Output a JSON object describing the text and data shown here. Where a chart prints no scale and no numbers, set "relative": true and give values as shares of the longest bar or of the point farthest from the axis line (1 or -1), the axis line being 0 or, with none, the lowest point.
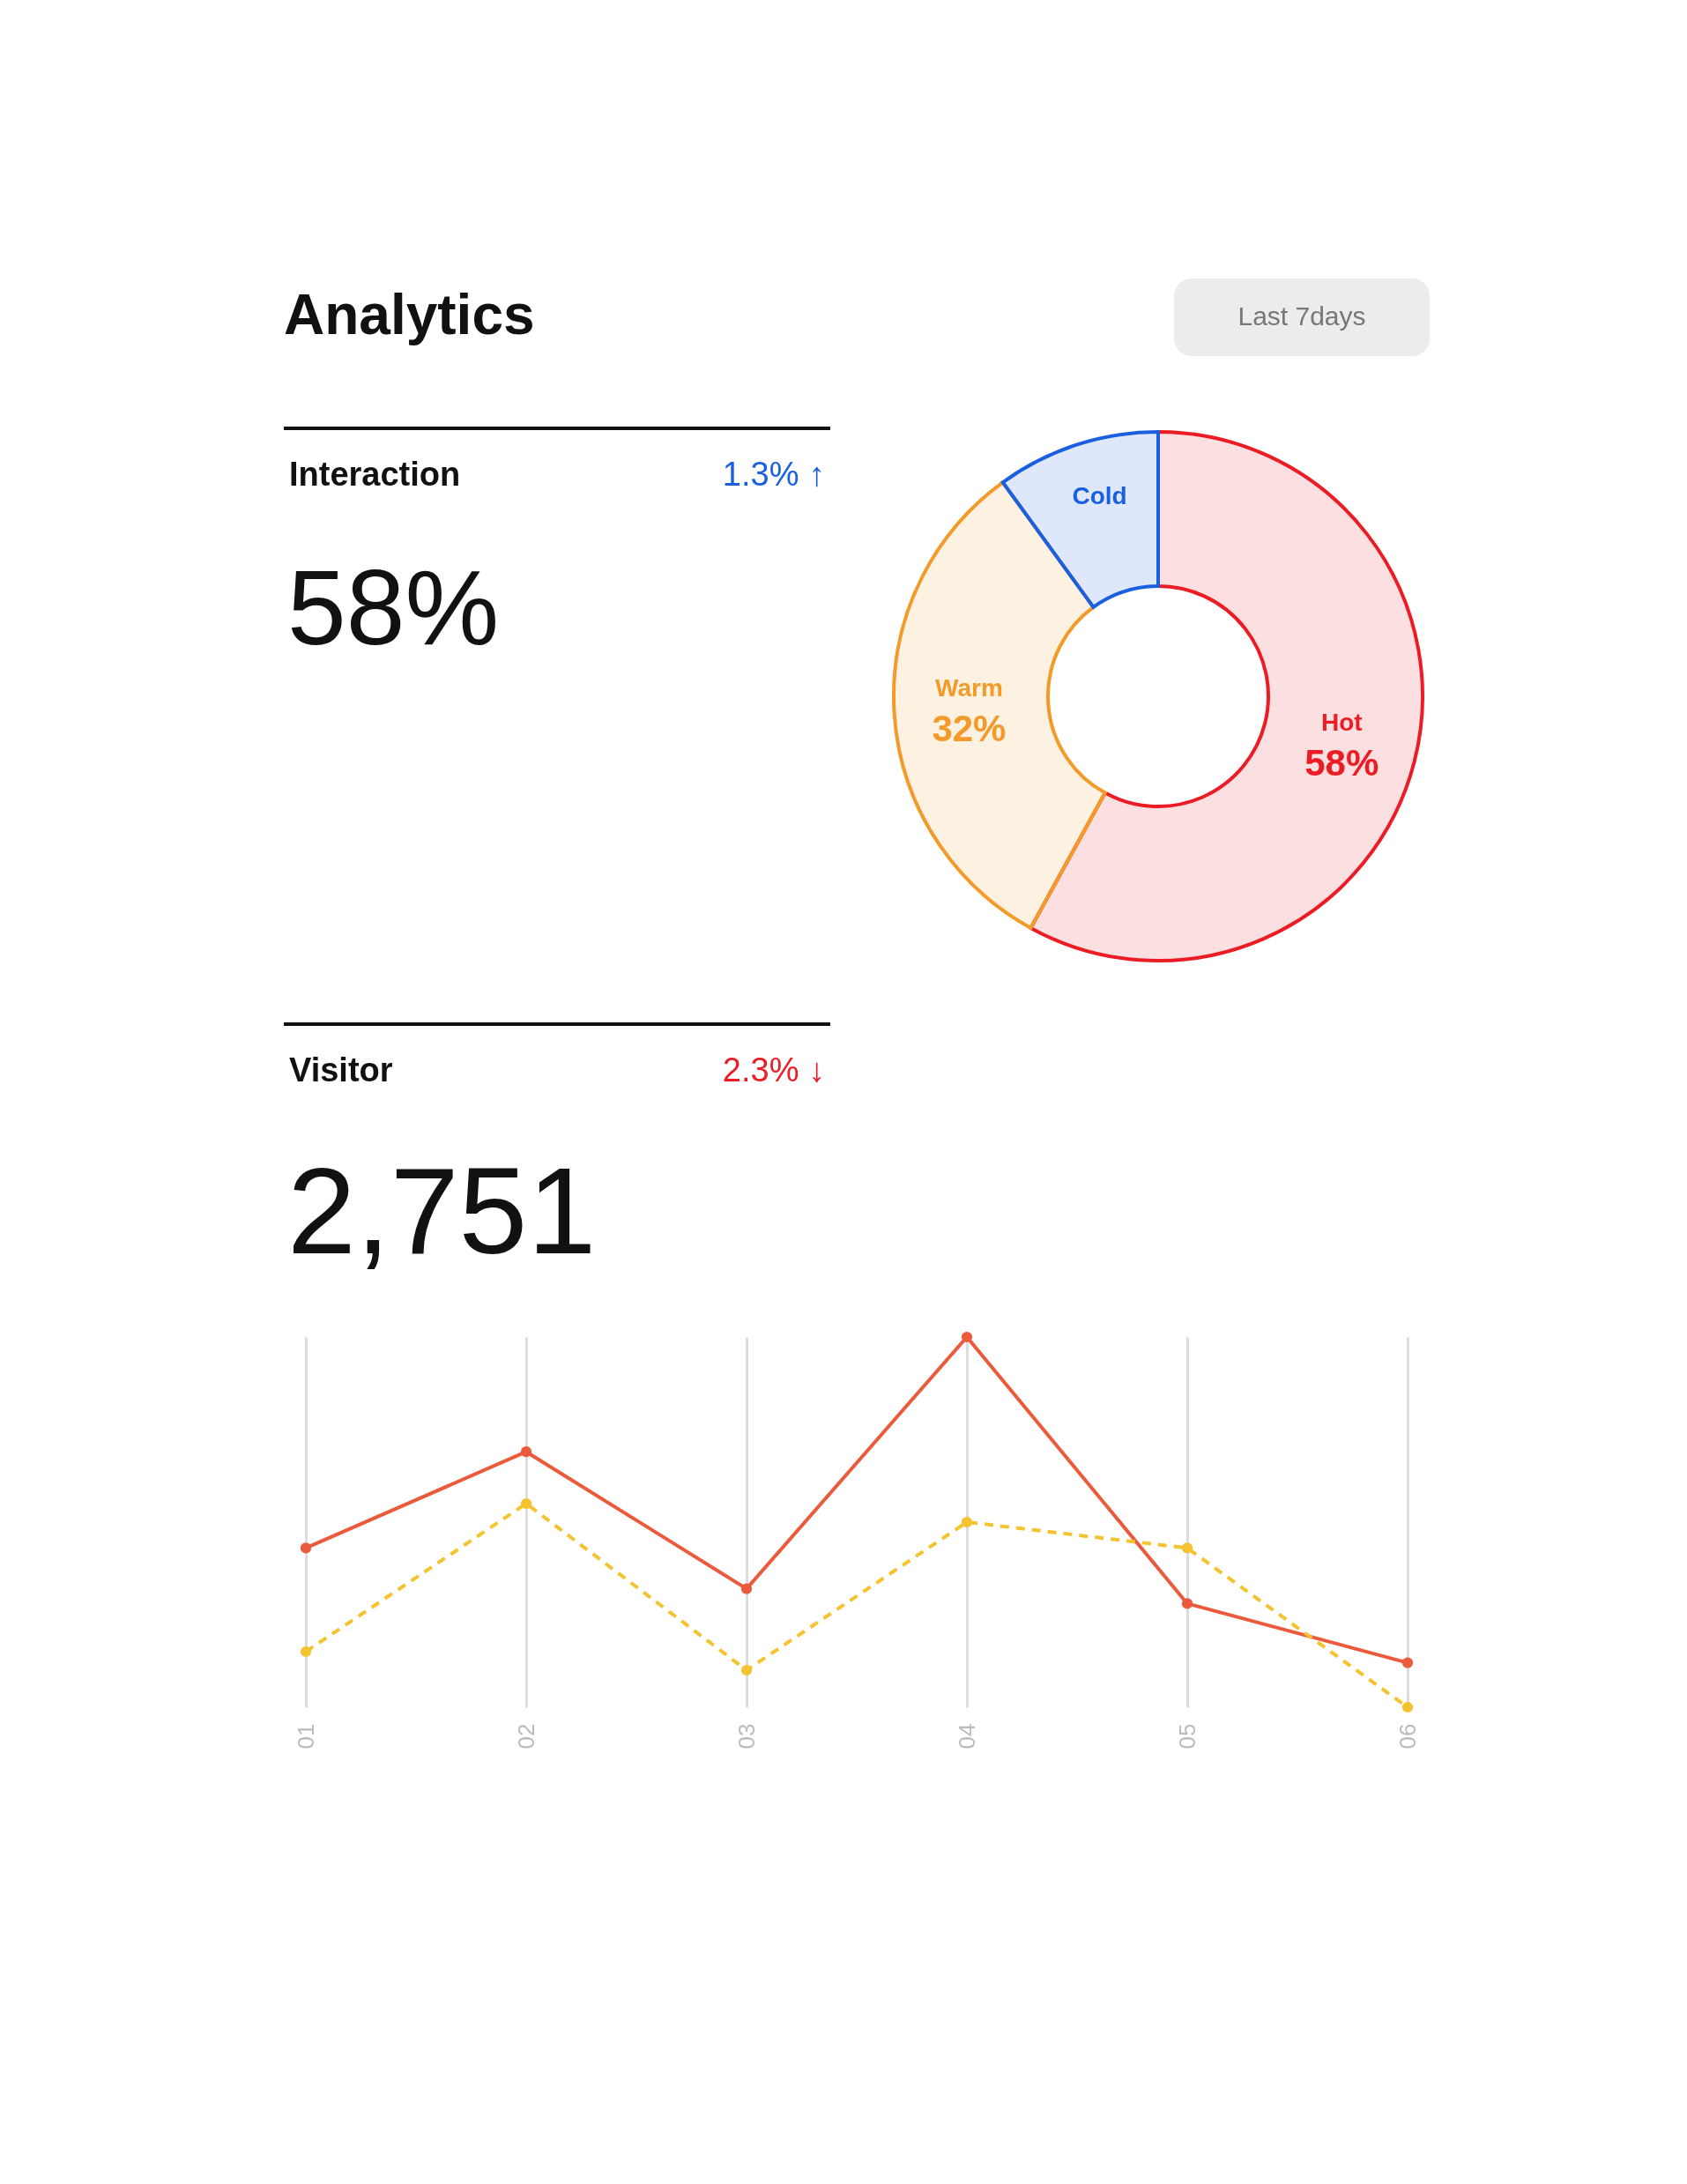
{
  "chart_data": [
    {
      "type": "other",
      "title": "Analytics",
      "annotations": [
        "Last 7days",
        "Interaction",
        "1.3% ↑",
        "58%",
        "Visitor",
        "2.3% ↓",
        "2,751"
      ]
    },
    {
      "type": "donut",
      "categories": [
        "Hot",
        "Warm",
        "Cold"
      ],
      "values": [
        58,
        32,
        10
      ],
      "colors": [
        "#ec1c24",
        "#f39a2b",
        "#1a5fe0"
      ],
      "value_labels": [
        "58%",
        "32%",
        null
      ]
    },
    {
      "type": "line",
      "categories": [
        "01",
        "02",
        "03",
        "04",
        "05",
        "06"
      ],
      "relative": true,
      "grid": "x",
      "marker": "circle",
      "series": [
        {
          "color": "#ec5a3c",
          "line_style": "solid",
          "values": [
            0.43,
            0.69,
            0.32,
            1.0,
            0.28,
            0.12
          ]
        },
        {
          "color": "#f5c330",
          "line_style": "dashed",
          "values": [
            0.15,
            0.55,
            0.1,
            0.5,
            0.43,
            0.0
          ]
        }
      ]
    }
  ]
}
